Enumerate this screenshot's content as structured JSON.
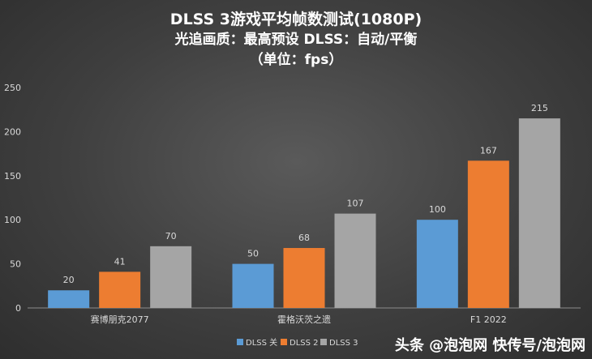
{
  "chart_data": {
    "type": "bar",
    "title_lines": [
      "DLSS 3游戏平均帧数测试(1080P)",
      "光追画质：最高预设    DLSS：自动/平衡",
      "（单位：fps）"
    ],
    "categories": [
      "赛博朋克2077",
      "霍格沃茨之遗",
      "F1 2022"
    ],
    "series": [
      {
        "name": "DLSS 关",
        "values": [
          20,
          50,
          100
        ],
        "color": "#5b9bd5"
      },
      {
        "name": "DLSS 2",
        "values": [
          41,
          68,
          167
        ],
        "color": "#ed7d31"
      },
      {
        "name": "DLSS 3",
        "values": [
          70,
          107,
          215
        ],
        "color": "#a5a5a5"
      }
    ],
    "yticks": [
      "0",
      "50",
      "100",
      "150",
      "200",
      "250"
    ],
    "ylim": [
      0,
      250
    ],
    "grid": false,
    "legend_position": "bottom"
  },
  "watermark": "头条 @泡泡网 快传号/泡泡网"
}
